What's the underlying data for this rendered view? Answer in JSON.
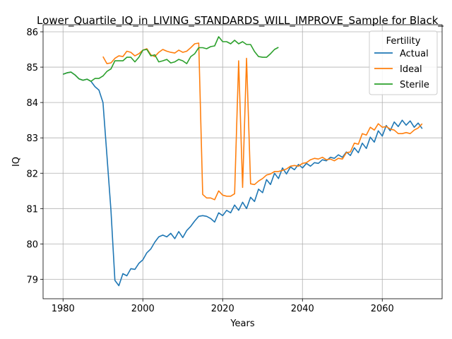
{
  "chart_data": {
    "type": "line",
    "title": "Lower_Quartile_IQ_in_LIVING_STANDARDS_WILL_IMPROVE_Sample for Black_",
    "xlabel": "Years",
    "ylabel": "IQ",
    "xlim": [
      1975,
      2075
    ],
    "ylim": [
      78.45,
      86.2
    ],
    "xticks": [
      1980,
      2000,
      2020,
      2040,
      2060
    ],
    "yticks": [
      79,
      80,
      81,
      82,
      83,
      84,
      85,
      86
    ],
    "grid": true,
    "legend": {
      "title": "Fertility",
      "position": "top-right"
    },
    "series": [
      {
        "name": "Actual",
        "color": "#1f77b4",
        "x": [
          1980,
          1981,
          1982,
          1983,
          1984,
          1985,
          1986,
          1987,
          1988,
          1989,
          1990,
          1991,
          1992,
          1993,
          1994,
          1995,
          1996,
          1997,
          1998,
          1999,
          2000,
          2001,
          2002,
          2003,
          2004,
          2005,
          2006,
          2007,
          2008,
          2009,
          2010,
          2011,
          2012,
          2013,
          2014,
          2015,
          2016,
          2017,
          2018,
          2019,
          2020,
          2021,
          2022,
          2023,
          2024,
          2025,
          2026,
          2027,
          2028,
          2029,
          2030,
          2031,
          2032,
          2033,
          2034,
          2035,
          2036,
          2037,
          2038,
          2039,
          2040,
          2041,
          2042,
          2043,
          2044,
          2045,
          2046,
          2047,
          2048,
          2049,
          2050,
          2051,
          2052,
          2053,
          2054,
          2055,
          2056,
          2057,
          2058,
          2059,
          2060,
          2061,
          2062,
          2063,
          2064,
          2065,
          2066,
          2067,
          2068,
          2069,
          2070
        ],
        "values": [
          84.8,
          84.84,
          84.86,
          84.78,
          84.67,
          84.63,
          84.66,
          84.6,
          84.45,
          84.35,
          84.0,
          82.5,
          80.95,
          78.97,
          78.82,
          79.16,
          79.1,
          79.3,
          79.28,
          79.45,
          79.55,
          79.75,
          79.86,
          80.05,
          80.2,
          80.25,
          80.2,
          80.3,
          80.15,
          80.35,
          80.18,
          80.38,
          80.5,
          80.65,
          80.78,
          80.8,
          80.78,
          80.72,
          80.62,
          80.88,
          80.8,
          80.95,
          80.88,
          81.1,
          80.95,
          81.18,
          81.0,
          81.32,
          81.2,
          81.55,
          81.45,
          81.82,
          81.68,
          82.0,
          81.85,
          82.15,
          81.98,
          82.18,
          82.1,
          82.25,
          82.15,
          82.28,
          82.2,
          82.3,
          82.28,
          82.38,
          82.35,
          82.45,
          82.42,
          82.52,
          82.45,
          82.6,
          82.5,
          82.72,
          82.58,
          82.85,
          82.7,
          83.02,
          82.88,
          83.2,
          83.05,
          83.35,
          83.2,
          83.45,
          83.32,
          83.5,
          83.36,
          83.48,
          83.3,
          83.42,
          83.26
        ]
      },
      {
        "name": "Ideal",
        "color": "#ff7f0e",
        "x": [
          1990,
          1991,
          1992,
          1993,
          1994,
          1995,
          1996,
          1997,
          1998,
          1999,
          2000,
          2001,
          2002,
          2003,
          2004,
          2005,
          2006,
          2007,
          2008,
          2009,
          2010,
          2011,
          2012,
          2013,
          2014,
          2015,
          2016,
          2017,
          2018,
          2019,
          2020,
          2021,
          2022,
          2023,
          2024,
          2025,
          2026,
          2027,
          2028,
          2029,
          2030,
          2031,
          2032,
          2033,
          2034,
          2035,
          2036,
          2037,
          2038,
          2039,
          2040,
          2041,
          2042,
          2043,
          2044,
          2045,
          2046,
          2047,
          2048,
          2049,
          2050,
          2051,
          2052,
          2053,
          2054,
          2055,
          2056,
          2057,
          2058,
          2059,
          2060,
          2061,
          2062,
          2063,
          2064,
          2065,
          2066,
          2067,
          2068,
          2069,
          2070
        ],
        "values": [
          85.3,
          85.1,
          85.12,
          85.25,
          85.32,
          85.3,
          85.45,
          85.42,
          85.32,
          85.38,
          85.48,
          85.52,
          85.35,
          85.3,
          85.42,
          85.5,
          85.45,
          85.42,
          85.4,
          85.48,
          85.42,
          85.45,
          85.55,
          85.66,
          85.68,
          81.4,
          81.3,
          81.3,
          81.25,
          81.5,
          81.38,
          81.35,
          81.35,
          81.42,
          85.18,
          81.6,
          85.25,
          81.7,
          81.68,
          81.78,
          81.85,
          81.95,
          81.98,
          82.05,
          82.05,
          82.08,
          82.12,
          82.2,
          82.22,
          82.2,
          82.28,
          82.3,
          82.38,
          82.42,
          82.4,
          82.45,
          82.38,
          82.4,
          82.35,
          82.42,
          82.4,
          82.58,
          82.6,
          82.85,
          82.82,
          83.12,
          83.08,
          83.3,
          83.22,
          83.4,
          83.3,
          83.32,
          83.25,
          83.22,
          83.12,
          83.12,
          83.15,
          83.12,
          83.22,
          83.28,
          83.4
        ]
      },
      {
        "name": "Sterile",
        "color": "#2ca02c",
        "x": [
          1980,
          1981,
          1982,
          1983,
          1984,
          1985,
          1986,
          1987,
          1988,
          1989,
          1990,
          1991,
          1992,
          1993,
          1994,
          1995,
          1996,
          1997,
          1998,
          1999,
          2000,
          2001,
          2002,
          2003,
          2004,
          2005,
          2006,
          2007,
          2008,
          2009,
          2010,
          2011,
          2012,
          2013,
          2014,
          2015,
          2016,
          2017,
          2018,
          2019,
          2020,
          2021,
          2022,
          2023,
          2024,
          2025,
          2026,
          2027,
          2028,
          2029,
          2030,
          2031,
          2032,
          2033,
          2034
        ],
        "values": [
          84.8,
          84.84,
          84.86,
          84.78,
          84.67,
          84.63,
          84.66,
          84.6,
          84.68,
          84.68,
          84.75,
          84.88,
          84.95,
          85.18,
          85.18,
          85.18,
          85.28,
          85.28,
          85.15,
          85.28,
          85.48,
          85.5,
          85.32,
          85.35,
          85.15,
          85.18,
          85.22,
          85.12,
          85.15,
          85.22,
          85.18,
          85.1,
          85.3,
          85.38,
          85.55,
          85.55,
          85.52,
          85.58,
          85.6,
          85.86,
          85.72,
          85.72,
          85.66,
          85.76,
          85.66,
          85.72,
          85.64,
          85.64,
          85.44,
          85.3,
          85.28,
          85.28,
          85.38,
          85.5,
          85.56
        ]
      }
    ]
  }
}
